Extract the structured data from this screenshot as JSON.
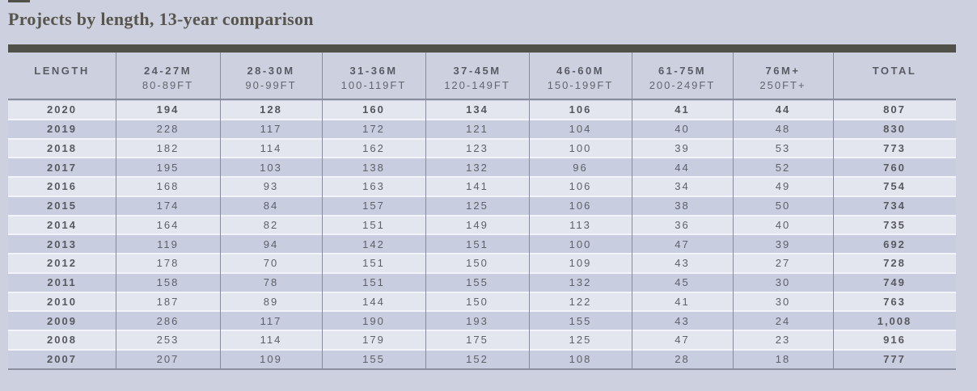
{
  "title": "Projects by length, 13-year comparison",
  "colors": {
    "background": "#cdd1df",
    "title_bar": "#50524a",
    "row_light": "#e4e6ef",
    "row_dark": "#c8cddf",
    "grid_line": "#868c9b",
    "text": "#5e6068"
  },
  "table": {
    "columns": [
      {
        "range_m": "LENGTH",
        "range_ft": ""
      },
      {
        "range_m": "24-27M",
        "range_ft": "80-89FT"
      },
      {
        "range_m": "28-30M",
        "range_ft": "90-99FT"
      },
      {
        "range_m": "31-36M",
        "range_ft": "100-119FT"
      },
      {
        "range_m": "37-45M",
        "range_ft": "120-149FT"
      },
      {
        "range_m": "46-60M",
        "range_ft": "150-199FT"
      },
      {
        "range_m": "61-75M",
        "range_ft": "200-249FT"
      },
      {
        "range_m": "76M+",
        "range_ft": "250FT+"
      },
      {
        "range_m": "TOTAL",
        "range_ft": ""
      }
    ],
    "rows": [
      {
        "year": "2020",
        "values": [
          "194",
          "128",
          "160",
          "134",
          "106",
          "41",
          "44"
        ],
        "total": "807",
        "bold": true
      },
      {
        "year": "2019",
        "values": [
          "228",
          "117",
          "172",
          "121",
          "104",
          "40",
          "48"
        ],
        "total": "830",
        "bold": false
      },
      {
        "year": "2018",
        "values": [
          "182",
          "114",
          "162",
          "123",
          "100",
          "39",
          "53"
        ],
        "total": "773",
        "bold": false
      },
      {
        "year": "2017",
        "values": [
          "195",
          "103",
          "138",
          "132",
          "96",
          "44",
          "52"
        ],
        "total": "760",
        "bold": false
      },
      {
        "year": "2016",
        "values": [
          "168",
          "93",
          "163",
          "141",
          "106",
          "34",
          "49"
        ],
        "total": "754",
        "bold": false
      },
      {
        "year": "2015",
        "values": [
          "174",
          "84",
          "157",
          "125",
          "106",
          "38",
          "50"
        ],
        "total": "734",
        "bold": false
      },
      {
        "year": "2014",
        "values": [
          "164",
          "82",
          "151",
          "149",
          "113",
          "36",
          "40"
        ],
        "total": "735",
        "bold": false
      },
      {
        "year": "2013",
        "values": [
          "119",
          "94",
          "142",
          "151",
          "100",
          "47",
          "39"
        ],
        "total": "692",
        "bold": false
      },
      {
        "year": "2012",
        "values": [
          "178",
          "70",
          "151",
          "150",
          "109",
          "43",
          "27"
        ],
        "total": "728",
        "bold": false
      },
      {
        "year": "2011",
        "values": [
          "158",
          "78",
          "151",
          "155",
          "132",
          "45",
          "30"
        ],
        "total": "749",
        "bold": false
      },
      {
        "year": "2010",
        "values": [
          "187",
          "89",
          "144",
          "150",
          "122",
          "41",
          "30"
        ],
        "total": "763",
        "bold": false
      },
      {
        "year": "2009",
        "values": [
          "286",
          "117",
          "190",
          "193",
          "155",
          "43",
          "24"
        ],
        "total": "1,008",
        "bold": false
      },
      {
        "year": "2008",
        "values": [
          "253",
          "114",
          "179",
          "175",
          "125",
          "47",
          "23"
        ],
        "total": "916",
        "bold": false
      },
      {
        "year": "2007",
        "values": [
          "207",
          "109",
          "155",
          "152",
          "108",
          "28",
          "18"
        ],
        "total": "777",
        "bold": false
      }
    ]
  }
}
